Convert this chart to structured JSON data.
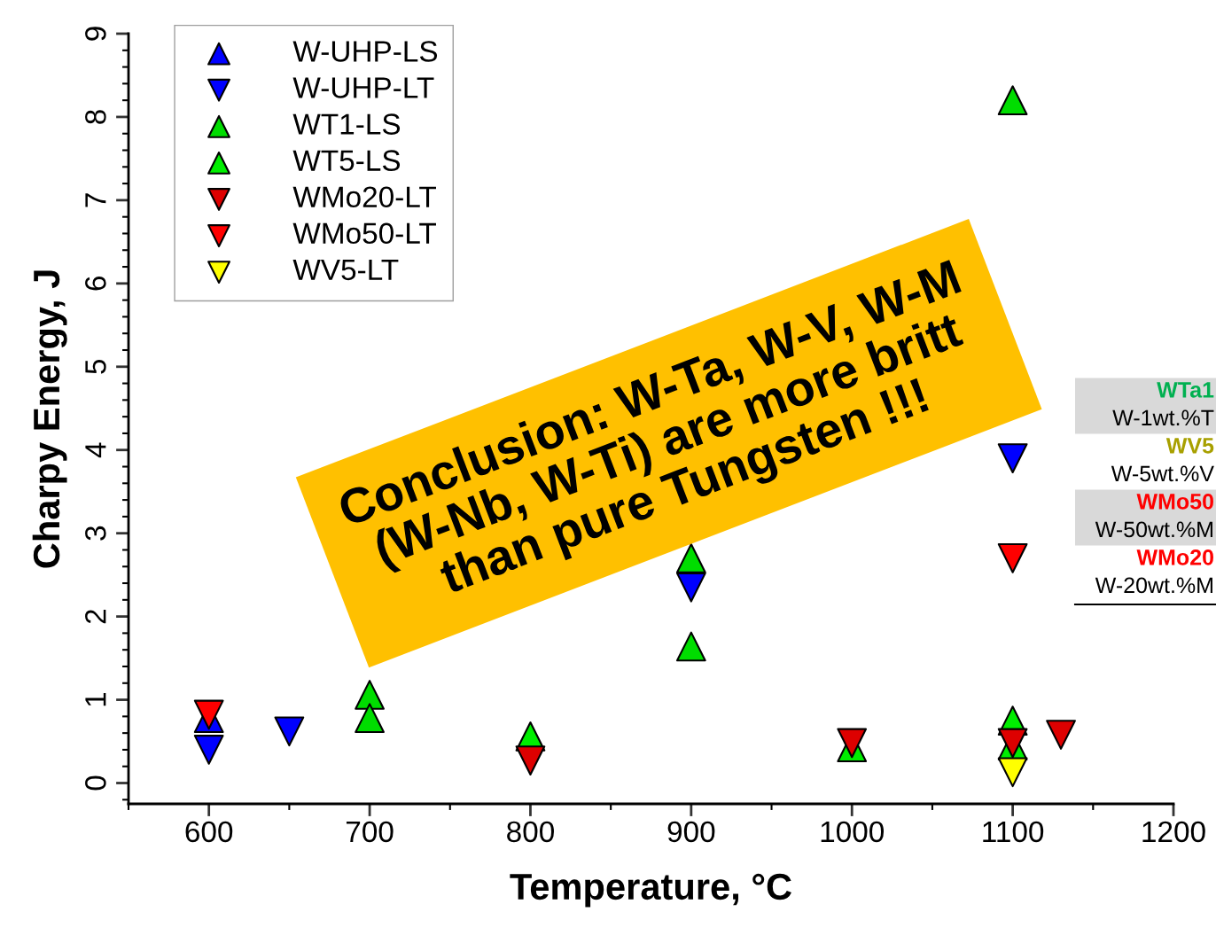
{
  "chart_data": {
    "type": "scatter",
    "xlabel": "Temperature, °C",
    "ylabel": "Charpy Energy, J",
    "xlim": [
      550,
      1200
    ],
    "xticks": [
      600,
      700,
      800,
      900,
      1000,
      1100,
      1200
    ],
    "ylim": [
      -0.25,
      9
    ],
    "yticks": [
      0,
      1,
      2,
      3,
      4,
      5,
      6,
      7,
      8,
      9
    ],
    "legend": "top left",
    "grid": false,
    "series": [
      {
        "name": "W-UHP-LS",
        "color": "#0000ff",
        "marker": "triangle",
        "x": [
          600
        ],
        "values": [
          0.78
        ]
      },
      {
        "name": "W-UHP-LT",
        "color": "#0000ff",
        "marker": "triangle-down",
        "x": [
          600,
          650,
          900,
          1100
        ],
        "values": [
          0.4,
          0.62,
          2.35,
          3.9
        ]
      },
      {
        "name": "WT1-LS",
        "color": "#00dd00",
        "marker": "triangle",
        "x": [
          700,
          700,
          900,
          900,
          1100
        ],
        "values": [
          1.06,
          0.78,
          2.7,
          1.64,
          8.2
        ]
      },
      {
        "name": "WT5-LS",
        "color": "#00ee00",
        "marker": "triangle",
        "x": [
          800,
          1000,
          1100,
          1100
        ],
        "values": [
          0.56,
          0.43,
          0.75,
          0.45
        ]
      },
      {
        "name": "WMo20-LT",
        "color": "#dd0000",
        "marker": "triangle-down",
        "x": [
          800,
          1000,
          1100,
          1130
        ],
        "values": [
          0.27,
          0.48,
          0.48,
          0.58
        ]
      },
      {
        "name": "WMo50-LT",
        "color": "#ff0000",
        "marker": "triangle-down",
        "x": [
          600,
          1100
        ],
        "values": [
          0.82,
          2.7
        ]
      },
      {
        "name": "WV5-LT",
        "color": "#ffff00",
        "marker": "triangle-down",
        "x": [
          1100
        ],
        "values": [
          0.13
        ]
      }
    ],
    "annotations": [
      "Conclusion: W-Ta, W-V, W-M\n(W-Nb, W-Ti) are more britt\nthan pure Tungsten !!!",
      "WTa1",
      "W-1wt.%T",
      "WV5",
      "W-5wt.%V",
      "WMo50",
      "W-50wt.%M",
      "WMo20",
      "W-20wt.%M"
    ]
  }
}
